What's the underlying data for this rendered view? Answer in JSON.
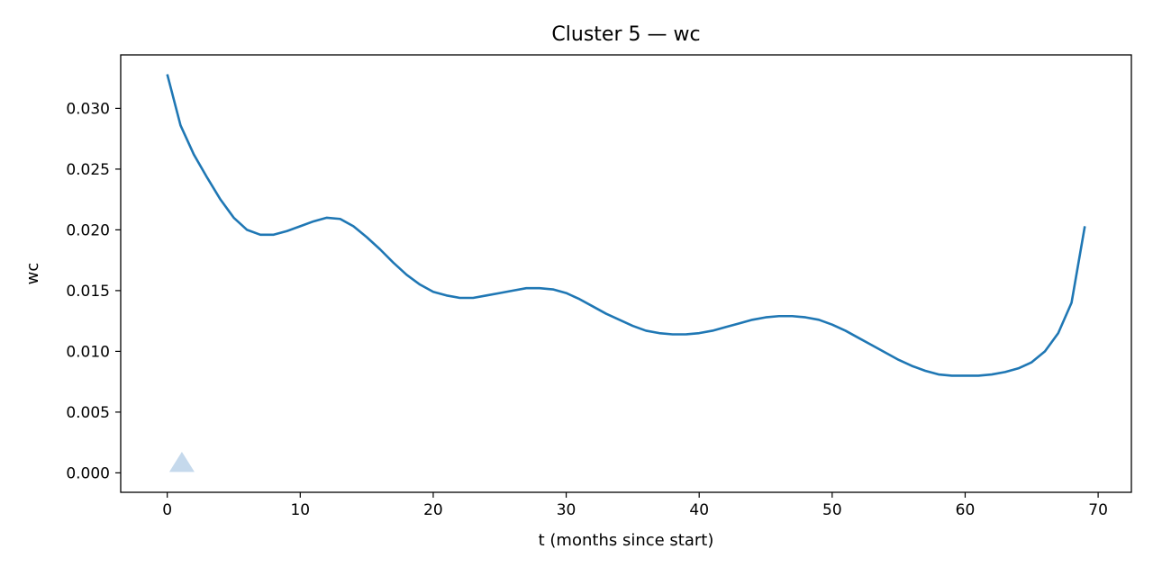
{
  "chart_data": {
    "type": "line",
    "title": "Cluster 5 — wc",
    "xlabel": "t (months since start)",
    "ylabel": "wc",
    "xlim": [
      -3.5,
      72.5
    ],
    "ylim": [
      -0.0016,
      0.0344
    ],
    "xticks": [
      0,
      10,
      20,
      30,
      40,
      50,
      60,
      70
    ],
    "xtick_labels": [
      "0",
      "10",
      "20",
      "30",
      "40",
      "50",
      "60",
      "70"
    ],
    "yticks": [
      0.0,
      0.005,
      0.01,
      0.015,
      0.02,
      0.025,
      0.03
    ],
    "ytick_labels": [
      "0.000",
      "0.005",
      "0.010",
      "0.015",
      "0.020",
      "0.025",
      "0.030"
    ],
    "grid": false,
    "series": [
      {
        "color": "#1f77b4",
        "x": [
          0,
          1,
          2,
          3,
          4,
          5,
          6,
          7,
          8,
          9,
          10,
          11,
          12,
          13,
          14,
          15,
          16,
          17,
          18,
          19,
          20,
          21,
          22,
          23,
          24,
          25,
          26,
          27,
          28,
          29,
          30,
          31,
          32,
          33,
          34,
          35,
          36,
          37,
          38,
          39,
          40,
          41,
          42,
          43,
          44,
          45,
          46,
          47,
          48,
          49,
          50,
          51,
          52,
          53,
          54,
          55,
          56,
          57,
          58,
          59,
          60,
          61,
          62,
          63,
          64,
          65,
          66,
          67,
          68,
          69
        ],
        "y": [
          0.0328,
          0.0286,
          0.0262,
          0.0243,
          0.0225,
          0.021,
          0.02,
          0.0196,
          0.0196,
          0.0199,
          0.0203,
          0.0207,
          0.021,
          0.0209,
          0.0203,
          0.0194,
          0.0184,
          0.0173,
          0.0163,
          0.0155,
          0.0149,
          0.0146,
          0.0144,
          0.0144,
          0.0146,
          0.0148,
          0.015,
          0.0152,
          0.0152,
          0.0151,
          0.0148,
          0.0143,
          0.0137,
          0.0131,
          0.0126,
          0.0121,
          0.0117,
          0.0115,
          0.0114,
          0.0114,
          0.0115,
          0.0117,
          0.012,
          0.0123,
          0.0126,
          0.0128,
          0.0129,
          0.0129,
          0.0128,
          0.0126,
          0.0122,
          0.0117,
          0.0111,
          0.0105,
          0.0099,
          0.0093,
          0.0088,
          0.0084,
          0.0081,
          0.008,
          0.008,
          0.008,
          0.0081,
          0.0083,
          0.0086,
          0.0091,
          0.01,
          0.0115,
          0.014,
          0.0203
        ]
      }
    ],
    "markers": [
      {
        "shape": "triangle",
        "x": 1.1,
        "y": 0.0007,
        "color": "#c5d9ec"
      }
    ]
  }
}
